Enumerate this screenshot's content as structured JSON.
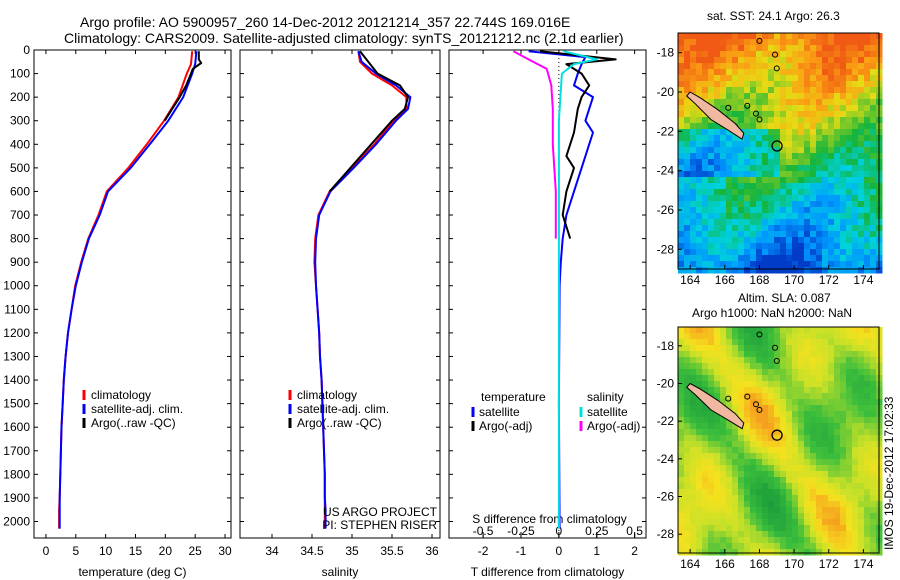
{
  "header": {
    "line1": "Argo profile: AO 5900957_260 14-Dec-2012 20121214_357 22.744S 169.016E",
    "line2": "Climatology: CARS2009. Satellite-adjusted climatology: synTS_20121212.nc (2.1d earlier)"
  },
  "colors": {
    "climatology": "#ff0000",
    "satellite": "#0000ff",
    "argo": "#000000",
    "sat_salinity": "#00e0e0",
    "argo_salinity": "#ff00ff"
  },
  "chart_data": [
    {
      "type": "line",
      "id": "temperature",
      "xlabel": "temperature (deg C)",
      "xlim": [
        -2,
        31
      ],
      "ylim": [
        0,
        2070
      ],
      "xticks": [
        0,
        5,
        10,
        15,
        20,
        25,
        30
      ],
      "yticks": [
        0,
        100,
        200,
        300,
        400,
        500,
        600,
        700,
        800,
        900,
        1000,
        1100,
        1200,
        1300,
        1400,
        1500,
        1600,
        1700,
        1800,
        1900,
        2000
      ],
      "series": [
        {
          "name": "climatology",
          "color": "#ff0000",
          "points": [
            [
              24.5,
              5
            ],
            [
              24.3,
              60
            ],
            [
              23.6,
              100
            ],
            [
              22.2,
              200
            ],
            [
              19.8,
              300
            ],
            [
              16.9,
              400
            ],
            [
              13.8,
              500
            ],
            [
              10.2,
              600
            ],
            [
              8.8,
              700
            ],
            [
              7.1,
              800
            ],
            [
              5.9,
              900
            ],
            [
              4.9,
              1000
            ],
            [
              4.3,
              1100
            ],
            [
              3.7,
              1200
            ],
            [
              3.3,
              1300
            ],
            [
              3.0,
              1400
            ],
            [
              2.8,
              1500
            ],
            [
              2.6,
              1600
            ],
            [
              2.5,
              1700
            ],
            [
              2.4,
              1800
            ],
            [
              2.3,
              1900
            ],
            [
              2.2,
              1950
            ],
            [
              2.2,
              2030
            ]
          ]
        },
        {
          "name": "satellite-adj. clim.",
          "color": "#0000ff",
          "points": [
            [
              25.2,
              5
            ],
            [
              25.0,
              60
            ],
            [
              24.5,
              100
            ],
            [
              23.0,
              200
            ],
            [
              20.5,
              300
            ],
            [
              17.4,
              400
            ],
            [
              14.2,
              500
            ],
            [
              10.4,
              600
            ],
            [
              9.0,
              700
            ],
            [
              7.2,
              800
            ],
            [
              6.0,
              900
            ],
            [
              5.0,
              1000
            ],
            [
              4.3,
              1100
            ],
            [
              3.7,
              1200
            ],
            [
              3.3,
              1300
            ],
            [
              3.0,
              1400
            ],
            [
              2.8,
              1500
            ],
            [
              2.6,
              1600
            ],
            [
              2.5,
              1700
            ],
            [
              2.4,
              1800
            ],
            [
              2.3,
              1900
            ],
            [
              2.3,
              1950
            ],
            [
              2.3,
              2030
            ]
          ]
        },
        {
          "name": "Argo(..raw -QC)",
          "color": "#000000",
          "points": [
            [
              25.6,
              5
            ],
            [
              25.6,
              40
            ],
            [
              26.0,
              55
            ],
            [
              24.6,
              80
            ],
            [
              24.3,
              100
            ],
            [
              23.5,
              150
            ],
            [
              22.4,
              200
            ],
            [
              19.9,
              300
            ]
          ]
        }
      ],
      "legend": [
        {
          "label": "climatology",
          "color": "#ff0000"
        },
        {
          "label": "satellite-adj. clim.",
          "color": "#0000ff"
        },
        {
          "label": "Argo(..raw -QC)",
          "color": "#000000"
        }
      ]
    },
    {
      "type": "line",
      "id": "salinity",
      "xlabel": "salinity",
      "xlim": [
        33.6,
        36.1
      ],
      "ylim": [
        0,
        2070
      ],
      "xticks": [
        34,
        34.5,
        35,
        35.5,
        36
      ],
      "series": [
        {
          "name": "climatology",
          "color": "#ff0000",
          "points": [
            [
              35.08,
              5
            ],
            [
              35.1,
              50
            ],
            [
              35.25,
              100
            ],
            [
              35.5,
              150
            ],
            [
              35.68,
              200
            ],
            [
              35.68,
              250
            ],
            [
              35.52,
              300
            ],
            [
              35.28,
              400
            ],
            [
              35.0,
              500
            ],
            [
              34.72,
              600
            ],
            [
              34.58,
              700
            ],
            [
              34.54,
              800
            ],
            [
              34.53,
              900
            ],
            [
              34.55,
              1000
            ],
            [
              34.57,
              1100
            ],
            [
              34.59,
              1200
            ],
            [
              34.6,
              1300
            ],
            [
              34.62,
              1400
            ],
            [
              34.63,
              1500
            ],
            [
              34.64,
              1600
            ],
            [
              34.65,
              1700
            ],
            [
              34.66,
              1800
            ],
            [
              34.66,
              1900
            ],
            [
              34.66,
              1950
            ],
            [
              34.66,
              2030
            ]
          ]
        },
        {
          "name": "satellite-adj. clim.",
          "color": "#0000ff",
          "points": [
            [
              35.08,
              5
            ],
            [
              35.12,
              50
            ],
            [
              35.3,
              100
            ],
            [
              35.55,
              150
            ],
            [
              35.73,
              200
            ],
            [
              35.7,
              250
            ],
            [
              35.55,
              300
            ],
            [
              35.3,
              400
            ],
            [
              35.02,
              500
            ],
            [
              34.73,
              600
            ],
            [
              34.59,
              700
            ],
            [
              34.55,
              800
            ],
            [
              34.54,
              900
            ],
            [
              34.55,
              1000
            ],
            [
              34.57,
              1100
            ],
            [
              34.59,
              1200
            ],
            [
              34.6,
              1300
            ],
            [
              34.62,
              1400
            ],
            [
              34.63,
              1500
            ],
            [
              34.64,
              1600
            ],
            [
              34.65,
              1700
            ],
            [
              34.66,
              1800
            ],
            [
              34.66,
              1900
            ],
            [
              34.67,
              1950
            ],
            [
              34.67,
              2030
            ]
          ]
        },
        {
          "name": "Argo(..raw -QC)",
          "color": "#000000",
          "points": [
            [
              35.1,
              5
            ],
            [
              35.18,
              40
            ],
            [
              35.32,
              100
            ],
            [
              35.6,
              150
            ],
            [
              35.7,
              200
            ],
            [
              35.66,
              250
            ],
            [
              35.5,
              300
            ],
            [
              35.24,
              400
            ],
            [
              34.98,
              500
            ],
            [
              34.72,
              600
            ]
          ]
        }
      ],
      "legend": [
        {
          "label": "climatology",
          "color": "#ff0000"
        },
        {
          "label": "satellite-adj. clim.",
          "color": "#0000ff"
        },
        {
          "label": "Argo(..raw -QC)",
          "color": "#000000"
        }
      ],
      "annotation": [
        "US ARGO PROJECT",
        "PI: STEPHEN RISER"
      ]
    },
    {
      "type": "line",
      "id": "difference",
      "xlabel": "T difference from climatology",
      "xlabel_top": "S difference from climatology",
      "xlim": [
        -2.9,
        2.3
      ],
      "ylim": [
        0,
        2070
      ],
      "xticks": [
        -2,
        -1,
        0,
        1,
        2
      ],
      "sticks": [
        {
          "v": -0.5,
          "label": "-0.5"
        },
        {
          "v": -0.25,
          "label": "-0.25"
        },
        {
          "v": 0,
          "label": "0"
        },
        {
          "v": 0.25,
          "label": "0.25"
        },
        {
          "v": 0.5,
          "label": "0.5"
        }
      ],
      "s_scale": 4,
      "series": [
        {
          "name": "temperature satellite",
          "color": "#0000ff",
          "points": [
            [
              -0.8,
              5
            ],
            [
              0.7,
              30
            ],
            [
              0.6,
              60
            ],
            [
              0.5,
              100
            ],
            [
              0.4,
              150
            ],
            [
              0.9,
              200
            ],
            [
              0.7,
              300
            ],
            [
              0.9,
              350
            ],
            [
              0.8,
              400
            ],
            [
              0.6,
              500
            ],
            [
              0.4,
              600
            ],
            [
              0.2,
              700
            ],
            [
              0.1,
              800
            ],
            [
              0.05,
              900
            ],
            [
              0.02,
              1000
            ],
            [
              0.0,
              1500
            ],
            [
              0.02,
              2030
            ]
          ]
        },
        {
          "name": "temperature Argo(-adj)",
          "color": "#000000",
          "points": [
            [
              -0.5,
              5
            ],
            [
              1.5,
              40
            ],
            [
              0.2,
              60
            ],
            [
              0.6,
              100
            ],
            [
              0.8,
              150
            ],
            [
              0.6,
              200
            ],
            [
              0.5,
              250
            ],
            [
              0.4,
              350
            ],
            [
              0.2,
              450
            ],
            [
              0.4,
              500
            ],
            [
              0.2,
              600
            ],
            [
              0.1,
              700
            ],
            [
              0.3,
              800
            ]
          ]
        },
        {
          "name": "salinity satellite",
          "color": "#00e0e0",
          "points": [
            [
              0.03,
              5
            ],
            [
              0.25,
              40
            ],
            [
              0.1,
              60
            ],
            [
              0.02,
              100
            ],
            [
              0.01,
              200
            ],
            [
              0.0,
              300
            ],
            [
              0.0,
              500
            ],
            [
              0.0,
              1000
            ],
            [
              0.0,
              1500
            ],
            [
              0.0,
              2030
            ]
          ]
        },
        {
          "name": "salinity Argo(-adj)",
          "color": "#ff00ff",
          "points": [
            [
              -0.3,
              5
            ],
            [
              -0.2,
              40
            ],
            [
              -0.08,
              80
            ],
            [
              -0.05,
              150
            ],
            [
              -0.04,
              250
            ],
            [
              -0.04,
              400
            ],
            [
              -0.02,
              600
            ],
            [
              -0.02,
              800
            ]
          ]
        }
      ],
      "legend_headers": [
        "temperature",
        "salinity"
      ],
      "legend": [
        {
          "label": "satellite",
          "color": "#0000ff",
          "col": 0
        },
        {
          "label": "Argo(-adj)",
          "color": "#000000",
          "col": 0
        },
        {
          "label": "satellite",
          "color": "#00e0e0",
          "col": 1
        },
        {
          "label": "Argo(-adj)",
          "color": "#ff00ff",
          "col": 1
        }
      ]
    }
  ],
  "maps": [
    {
      "id": "sst",
      "title": "sat. SST: 24.1  Argo: 26.3",
      "xticks": [
        164,
        166,
        168,
        170,
        172,
        174
      ],
      "yticks": [
        -18,
        -20,
        -22,
        -24,
        -26,
        -28
      ],
      "lon_range": [
        163.3,
        174.9
      ],
      "lat_range": [
        -17,
        -29
      ],
      "argo_pos": [
        169.016,
        -22.744
      ]
    },
    {
      "id": "sla",
      "title": "Altim. SLA: 0.087",
      "subtitle": "Argo h1000: NaN h2000: NaN",
      "xticks": [
        164,
        166,
        168,
        170,
        172,
        174
      ],
      "yticks": [
        -18,
        -20,
        -22,
        -24,
        -26,
        -28
      ],
      "lon_range": [
        163.3,
        174.9
      ],
      "lat_range": [
        -17,
        -29
      ],
      "argo_pos": [
        169.016,
        -22.744
      ]
    }
  ],
  "footer_stamp": "IMOS 19-Dec-2012 17:02:33"
}
